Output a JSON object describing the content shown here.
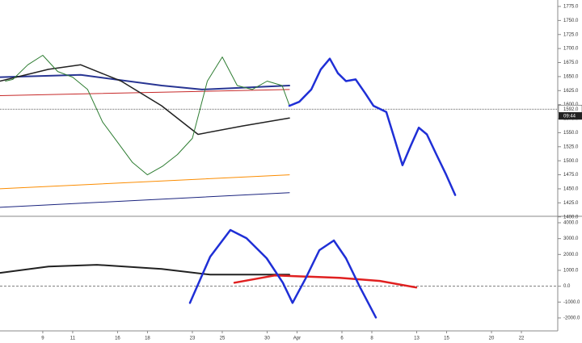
{
  "chart_data": [
    {
      "type": "line",
      "xlim": [
        -2.86,
        34.43
      ],
      "ylim": [
        1400,
        1775
      ],
      "yticks": [
        {
          "value": 1400,
          "label": "1400.0"
        },
        {
          "value": 1425,
          "label": "1425.0"
        },
        {
          "value": 1450,
          "label": "1450.0"
        },
        {
          "value": 1475,
          "label": "1475.0"
        },
        {
          "value": 1500,
          "label": "1500.0"
        },
        {
          "value": 1525,
          "label": "1525.0"
        },
        {
          "value": 1550,
          "label": "1550.0"
        },
        {
          "value": 1575,
          "label": "1575.0"
        },
        {
          "value": 1600,
          "label": "1600.0"
        },
        {
          "value": 1625,
          "label": "1625.0"
        },
        {
          "value": 1650,
          "label": "1650.0"
        },
        {
          "value": 1675,
          "label": "1675.0"
        },
        {
          "value": 1700,
          "label": "1700.0"
        },
        {
          "value": 1725,
          "label": "1725.0"
        },
        {
          "value": 1750,
          "label": "1750.0"
        },
        {
          "value": 1775,
          "label": "1775.0"
        }
      ],
      "last_price": {
        "value": 1592,
        "label": "1592.0"
      },
      "countdown": "09:44",
      "series": [
        {
          "color": "#fb8c00",
          "width": 1,
          "x": [
            -2.86,
            16.49
          ],
          "values": [
            1450,
            1475
          ]
        },
        {
          "color": "#1a237e",
          "width": 1,
          "x": [
            -2.86,
            16.49
          ],
          "values": [
            1417,
            1443
          ]
        },
        {
          "color": "#c62828",
          "width": 1,
          "x": [
            -2.86,
            16.49
          ],
          "values": [
            1616,
            1627
          ]
        },
        {
          "color": "#283593",
          "width": 2,
          "x": [
            -2.86,
            2.54,
            7.95,
            10.65,
            16.49
          ],
          "values": [
            1649,
            1653,
            1634,
            1627,
            1634
          ]
        },
        {
          "color": "#212121",
          "width": 1.5,
          "x": [
            -2.86,
            0.38,
            2.54,
            5.24,
            7.95,
            10.38,
            13.35,
            16.49
          ],
          "values": [
            1642,
            1663,
            1671,
            1642,
            1598,
            1547,
            1562,
            1576
          ]
        },
        {
          "color": "#2e7d32",
          "width": 1,
          "x": [
            -2.5,
            -2,
            -1,
            0,
            1,
            2,
            3,
            4,
            5,
            6,
            7,
            8,
            9,
            10,
            11,
            12,
            13,
            14,
            15,
            16,
            16.5
          ],
          "values": [
            1642,
            1645,
            1671,
            1688,
            1659,
            1649,
            1627,
            1569,
            1533,
            1497,
            1475,
            1490,
            1511,
            1540,
            1642,
            1685,
            1634,
            1627,
            1642,
            1634,
            1598
          ]
        },
        {
          "color": "#1f2fd6",
          "width": 2.5,
          "x": [
            16.49,
            17.14,
            17.95,
            18.59,
            19.19,
            19.73,
            20.27,
            20.92,
            21.57,
            22.11,
            22.97,
            23.51,
            24.05,
            24.59,
            25.14,
            25.68,
            26.32,
            26.97,
            27.57
          ],
          "values": [
            1598,
            1605,
            1627,
            1663,
            1682,
            1656,
            1642,
            1645,
            1620,
            1598,
            1587,
            1540,
            1492,
            1526,
            1559,
            1547,
            1511,
            1475,
            1439
          ]
        }
      ]
    },
    {
      "type": "line",
      "xlim": [
        -2.86,
        34.43
      ],
      "ylim": [
        -2700,
        4300
      ],
      "yticks": [
        {
          "value": -2000,
          "label": "-2000.0"
        },
        {
          "value": -1000,
          "label": "-1000.0"
        },
        {
          "value": 0,
          "label": "0.0"
        },
        {
          "value": 1000,
          "label": "1000.0"
        },
        {
          "value": 2000,
          "label": "2000.0"
        },
        {
          "value": 3000,
          "label": "3000.0"
        },
        {
          "value": 4000,
          "label": "4000.0"
        }
      ],
      "hline": 0,
      "xticks": [
        {
          "value": 0,
          "label": "9"
        },
        {
          "value": 2,
          "label": "11"
        },
        {
          "value": 5,
          "label": "16"
        },
        {
          "value": 7,
          "label": "18"
        },
        {
          "value": 10,
          "label": "23"
        },
        {
          "value": 12,
          "label": "25"
        },
        {
          "value": 15,
          "label": "30"
        },
        {
          "value": 17,
          "label": "Apr"
        },
        {
          "value": 20,
          "label": "6"
        },
        {
          "value": 22,
          "label": "8"
        },
        {
          "value": 25,
          "label": "13"
        },
        {
          "value": 27,
          "label": "15"
        },
        {
          "value": 30,
          "label": "20"
        },
        {
          "value": 32,
          "label": "22"
        }
      ],
      "series": [
        {
          "color": "#212121",
          "width": 2,
          "x": [
            -2.86,
            0.38,
            3.62,
            7.95,
            11.19,
            16.49
          ],
          "values": [
            840,
            1240,
            1350,
            1090,
            730,
            730
          ]
        },
        {
          "color": "#e02020",
          "width": 2.5,
          "x": [
            12.81,
            15.51,
            19.84,
            22.54,
            24.97
          ],
          "values": [
            220,
            680,
            530,
            330,
            -80
          ]
        },
        {
          "color": "#1f2fd6",
          "width": 2.5,
          "x": [
            9.84,
            11.19,
            12.54,
            13.62,
            14.97,
            16.05,
            16.7,
            17.57,
            18.49,
            19.46,
            20.27,
            21.19,
            22.27
          ],
          "values": [
            -1050,
            1860,
            3540,
            3030,
            1760,
            220,
            -1050,
            480,
            2270,
            2880,
            1760,
            -30,
            -1970
          ]
        }
      ]
    }
  ]
}
